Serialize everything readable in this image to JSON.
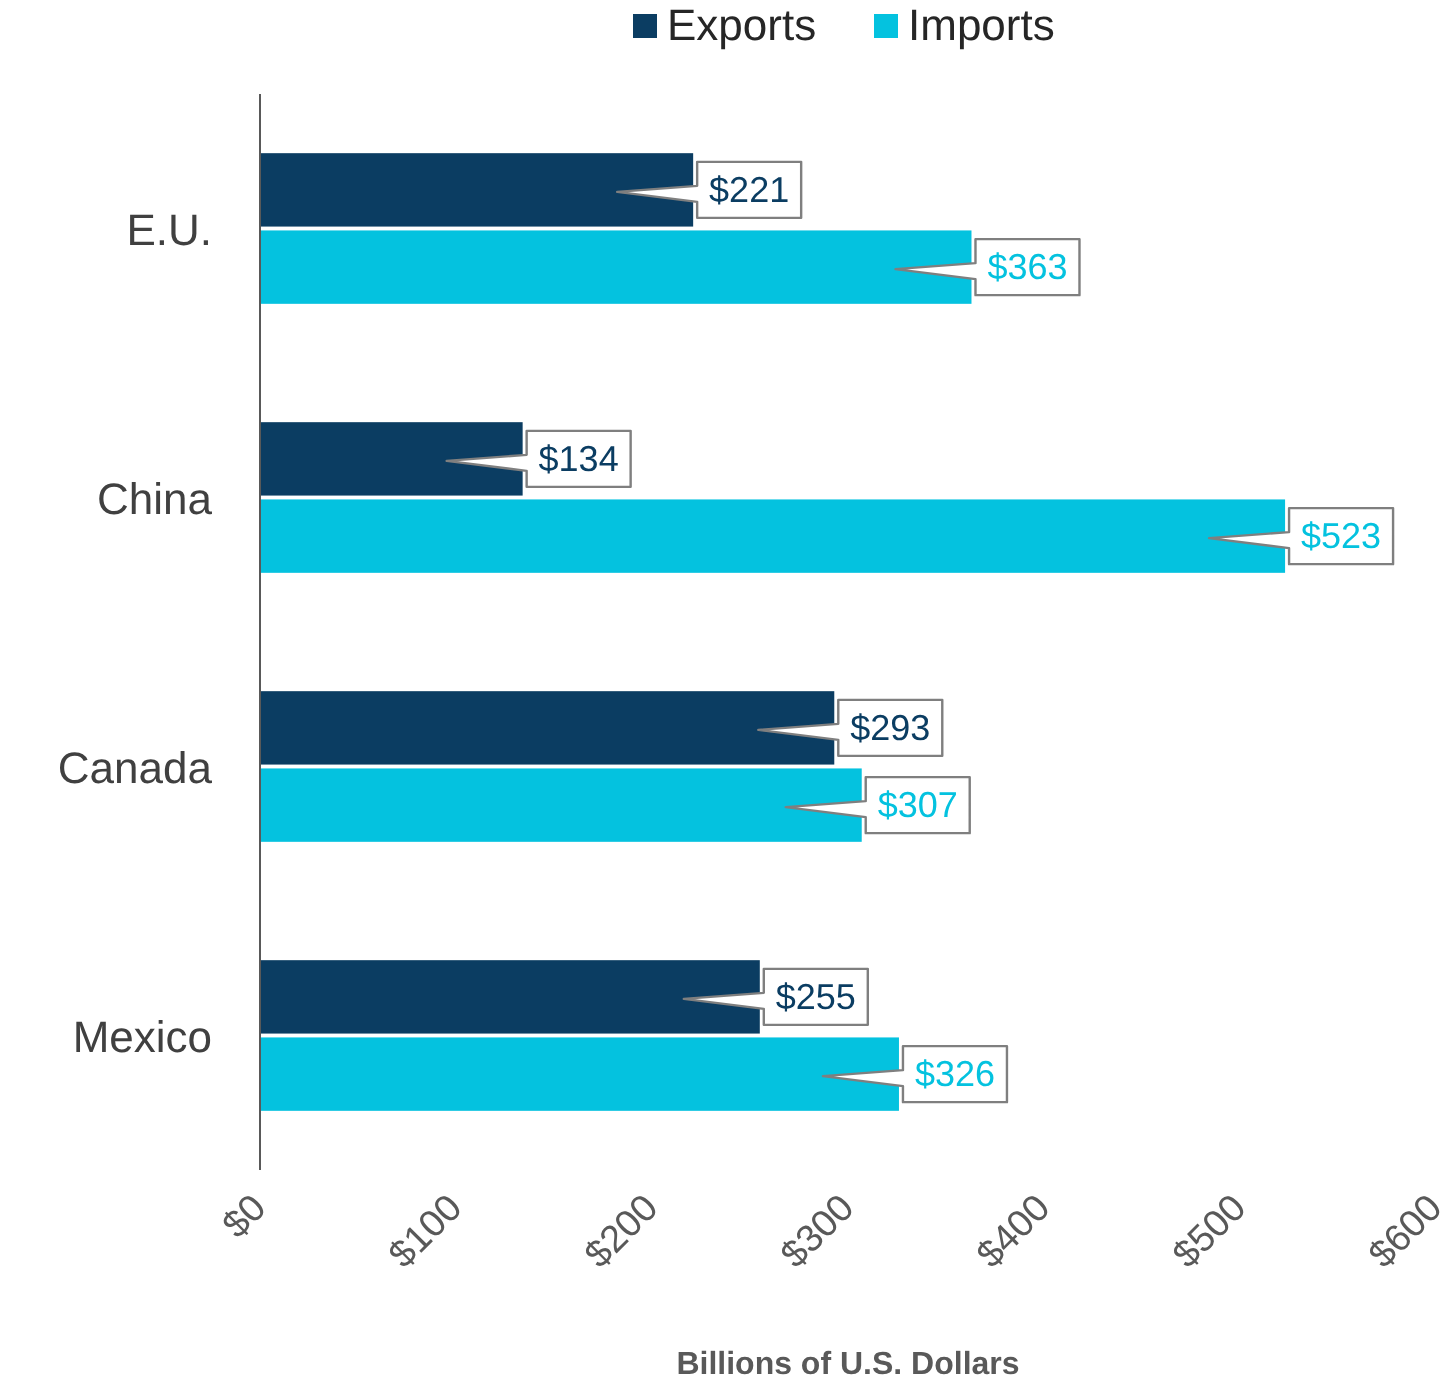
{
  "chart_data": {
    "type": "bar",
    "orientation": "horizontal",
    "xlabel": "Billions of U.S. Dollars",
    "categories": [
      "E.U.",
      "China",
      "Canada",
      "Mexico"
    ],
    "series": [
      {
        "name": "Exports",
        "color": "#0b3d62",
        "values": [
          221,
          134,
          293,
          255
        ],
        "value_labels": [
          "$221",
          "$134",
          "$293",
          "$255"
        ]
      },
      {
        "name": "Imports",
        "color": "#04c2df",
        "values": [
          363,
          523,
          307,
          326
        ],
        "value_labels": [
          "$363",
          "$523",
          "$307",
          "$326"
        ]
      }
    ],
    "xlim": [
      0,
      600
    ],
    "xticks": [
      {
        "value": 0,
        "label": "$0"
      },
      {
        "value": 100,
        "label": "$100"
      },
      {
        "value": 200,
        "label": "$200"
      },
      {
        "value": 300,
        "label": "$300"
      },
      {
        "value": 400,
        "label": "$400"
      },
      {
        "value": 500,
        "label": "$500"
      },
      {
        "value": 600,
        "label": "$600"
      }
    ],
    "legend": "top",
    "grid": false
  }
}
